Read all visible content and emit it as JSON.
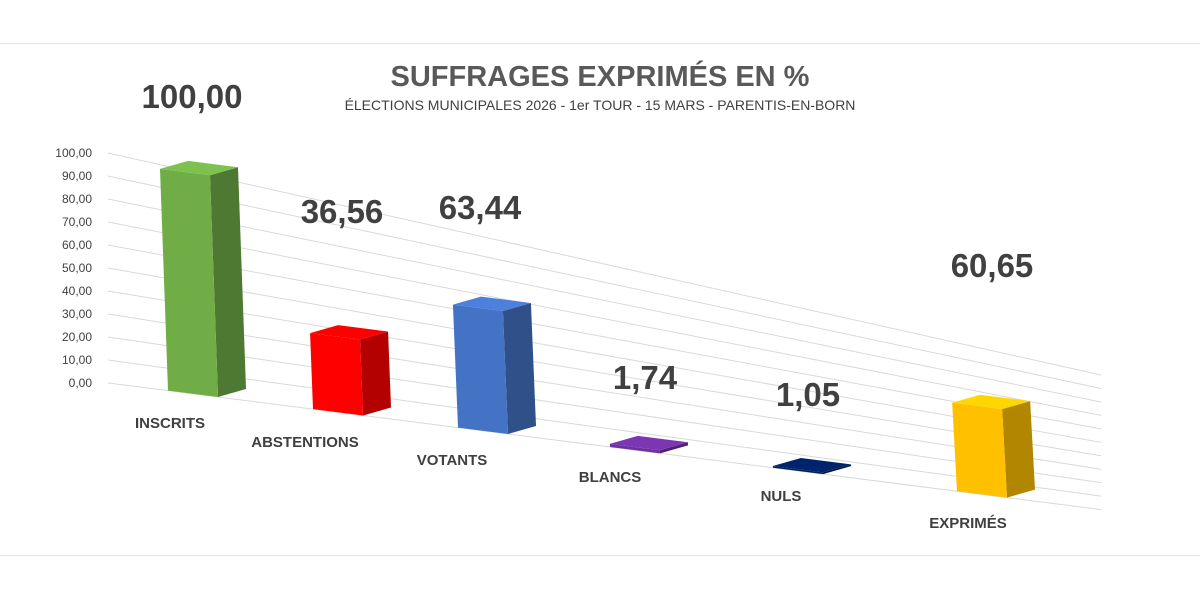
{
  "chart_data": {
    "type": "bar",
    "title": "SUFFRAGES EXPRIMÉS EN %",
    "subtitle": "ÉLECTIONS MUNICIPALES 2026 - 1er TOUR - 15 MARS - PARENTIS-EN-BORN",
    "categories": [
      "INSCRITS",
      "ABSTENTIONS",
      "VOTANTS",
      "BLANCS",
      "NULS",
      "EXPRIMÉS"
    ],
    "values": [
      100.0,
      36.56,
      63.44,
      1.74,
      1.05,
      60.65
    ],
    "value_labels": [
      "100,00",
      "36,56",
      "63,44",
      "1,74",
      "1,05",
      "60,65"
    ],
    "colors": [
      "#70AD47",
      "#FF0000",
      "#4472C4",
      "#7030A0",
      "#002060",
      "#FFC000"
    ],
    "y_ticks": [
      "0,00",
      "10,00",
      "20,00",
      "30,00",
      "40,00",
      "50,00",
      "60,00",
      "70,00",
      "80,00",
      "90,00",
      "100,00"
    ],
    "ylim": [
      0,
      100
    ],
    "grid": true,
    "style": "3d-column",
    "legend": "none"
  }
}
